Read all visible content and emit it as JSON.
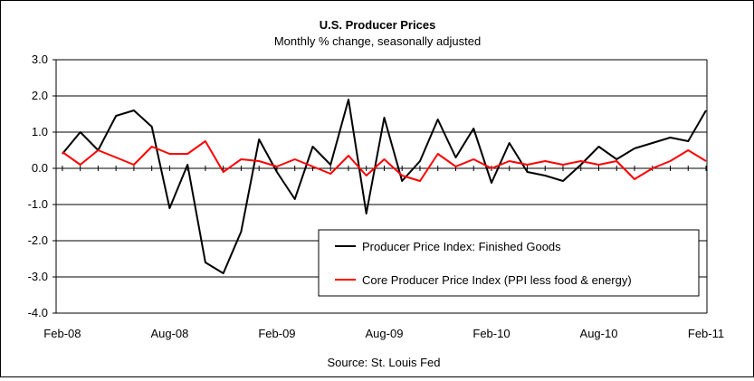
{
  "chart_data": {
    "type": "line",
    "title": "U.S. Producer Prices",
    "subtitle": "Monthly % change, seasonally adjusted",
    "source": "Source: St. Louis Fed",
    "xlabel": "",
    "ylabel": "",
    "ylim": [
      -4.0,
      3.0
    ],
    "yticks": [
      "3.0",
      "2.0",
      "1.0",
      "0.0",
      "-1.0",
      "-2.0",
      "-3.0",
      "-4.0"
    ],
    "yticks_values": [
      3,
      2,
      1,
      0,
      -1,
      -2,
      -3,
      -4
    ],
    "xtick_labels": [
      "Feb-08",
      "Aug-08",
      "Feb-09",
      "Aug-09",
      "Feb-10",
      "Aug-10",
      "Feb-11"
    ],
    "xtick_index": [
      0,
      6,
      12,
      18,
      24,
      30,
      36
    ],
    "x": [
      "Feb-08",
      "Mar-08",
      "Apr-08",
      "May-08",
      "Jun-08",
      "Jul-08",
      "Aug-08",
      "Sep-08",
      "Oct-08",
      "Nov-08",
      "Dec-08",
      "Jan-09",
      "Feb-09",
      "Mar-09",
      "Apr-09",
      "May-09",
      "Jun-09",
      "Jul-09",
      "Aug-09",
      "Sep-09",
      "Oct-09",
      "Nov-09",
      "Dec-09",
      "Jan-10",
      "Feb-10",
      "Mar-10",
      "Apr-10",
      "May-10",
      "Jun-10",
      "Jul-10",
      "Aug-10",
      "Sep-10",
      "Oct-10",
      "Nov-10",
      "Dec-10",
      "Jan-11",
      "Feb-11"
    ],
    "grid": true,
    "legend_position": "bottom-right",
    "series": [
      {
        "name": "Producer Price Index: Finished Goods",
        "color": "#000000",
        "values": [
          0.4,
          1.0,
          0.5,
          1.45,
          1.6,
          1.15,
          -1.1,
          0.1,
          -2.6,
          -2.9,
          -1.75,
          0.8,
          -0.1,
          -0.85,
          0.6,
          0.1,
          1.9,
          -1.25,
          1.4,
          -0.35,
          0.2,
          1.35,
          0.3,
          1.1,
          -0.4,
          0.7,
          -0.1,
          -0.2,
          -0.35,
          0.1,
          0.6,
          0.25,
          0.55,
          0.7,
          0.85,
          0.75,
          1.6
        ]
      },
      {
        "name": "Core Producer Price Index (PPI less food & energy)",
        "color": "#ff0000",
        "values": [
          0.45,
          0.1,
          0.5,
          0.3,
          0.1,
          0.6,
          0.4,
          0.4,
          0.75,
          -0.1,
          0.25,
          0.2,
          0.05,
          0.25,
          0.05,
          -0.15,
          0.35,
          -0.2,
          0.25,
          -0.2,
          -0.35,
          0.4,
          0.05,
          0.25,
          0.0,
          0.2,
          0.1,
          0.2,
          0.1,
          0.2,
          0.1,
          0.2,
          -0.3,
          0.0,
          0.2,
          0.5,
          0.2
        ]
      }
    ]
  }
}
